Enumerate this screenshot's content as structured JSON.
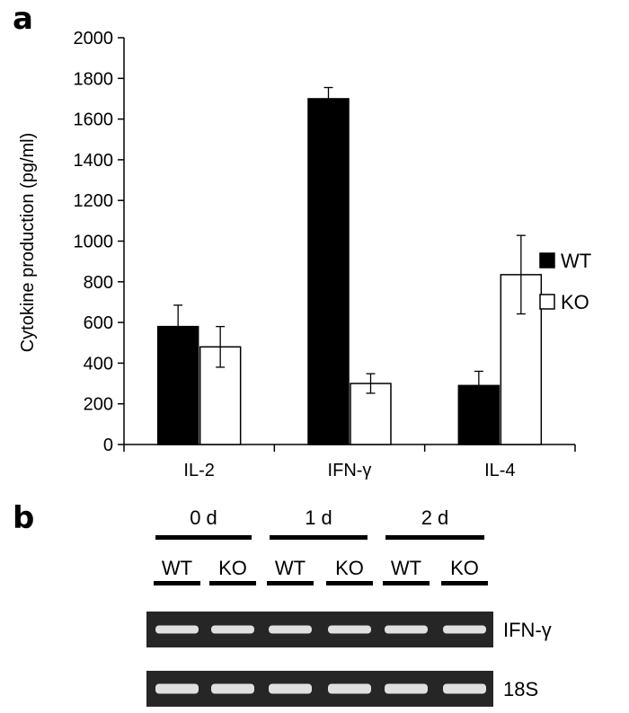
{
  "panels": {
    "a": "a",
    "b": "b"
  },
  "chart_data": {
    "type": "bar",
    "categories": [
      "IL-2",
      "IFN-γ",
      "IL-4"
    ],
    "series": [
      {
        "name": "WT",
        "values": [
          580,
          1700,
          290
        ],
        "errors": [
          105,
          55,
          70
        ],
        "color": "#000000"
      },
      {
        "name": "KO",
        "values": [
          480,
          300,
          835
        ],
        "errors": [
          100,
          48,
          193
        ],
        "color": "#ffffff"
      }
    ],
    "ylabel": "Cytokine production (pg/ml)",
    "ylim": [
      0,
      2000
    ],
    "yticks": [
      0,
      200,
      400,
      600,
      800,
      1000,
      1200,
      1400,
      1600,
      1800,
      2000
    ],
    "legend_position": "right",
    "grid": false
  },
  "gel": {
    "timepoints": [
      "0 d",
      "1 d",
      "2 d"
    ],
    "lanes": [
      "WT",
      "KO",
      "WT",
      "KO",
      "WT",
      "KO"
    ],
    "rows": [
      "IFN-γ",
      "18S"
    ]
  }
}
